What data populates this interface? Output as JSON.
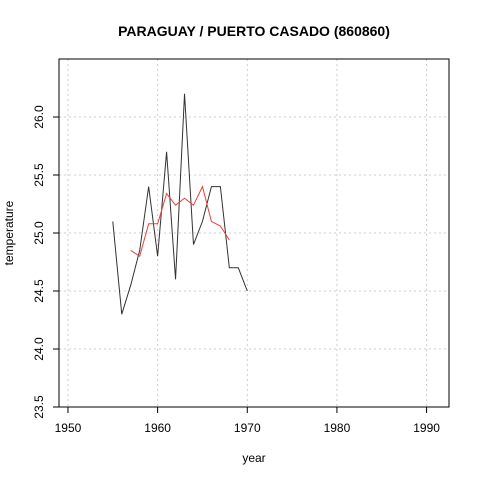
{
  "chart_data": {
    "type": "line",
    "title": "PARAGUAY / PUERTO CASADO (860860)",
    "xlabel": "year",
    "ylabel": "temperature",
    "xlim": [
      1949,
      1992.5
    ],
    "ylim": [
      23.5,
      26.5
    ],
    "xticks": [
      1950,
      1960,
      1970,
      1980,
      1990
    ],
    "yticks": [
      23.5,
      24.0,
      24.5,
      25.0,
      25.5,
      26.0
    ],
    "ytick_labels": [
      "23.5",
      "24.0",
      "24.5",
      "25.0",
      "25.5",
      "26.0"
    ],
    "grid": true,
    "series": [
      {
        "color": "#333333",
        "x": [
          1955,
          1956,
          1957,
          1958,
          1959,
          1960,
          1961,
          1962,
          1963,
          1964,
          1965,
          1966,
          1967,
          1968,
          1969,
          1970
        ],
        "y": [
          25.1,
          24.3,
          24.55,
          24.85,
          25.4,
          24.8,
          25.7,
          24.6,
          26.2,
          24.9,
          25.1,
          25.4,
          25.4,
          24.7,
          24.7,
          24.5
        ]
      },
      {
        "color": "#e8413a",
        "x": [
          1957,
          1958,
          1959,
          1960,
          1961,
          1962,
          1963,
          1964,
          1965,
          1966,
          1967,
          1968
        ],
        "y": [
          24.85,
          24.8,
          25.08,
          25.08,
          25.34,
          25.24,
          25.3,
          25.24,
          25.4,
          25.1,
          25.06,
          24.94
        ]
      }
    ]
  }
}
